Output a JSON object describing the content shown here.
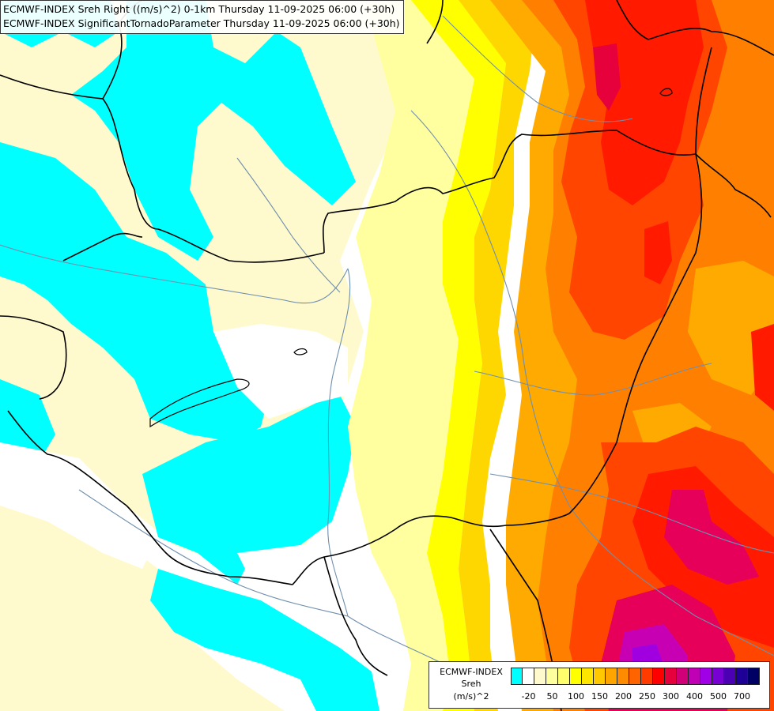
{
  "titles": {
    "line1": "ECMWF-INDEX Sreh Right ((m/s)^2) 0-1km Thursday 11-09-2025 06:00 (+30h)",
    "line2": "ECMWF-INDEX SignificantTornadoParameter Thursday 11-09-2025 06:00 (+30h)"
  },
  "legend": {
    "source": "ECMWF-INDEX",
    "variable": "Sreh",
    "unit": "(m/s)^2",
    "colors": [
      "#00ffff",
      "#ffffff",
      "#fffacd",
      "#ffffa0",
      "#ffff6e",
      "#ffff00",
      "#ffe600",
      "#ffc800",
      "#ffa500",
      "#ff8c00",
      "#ff6400",
      "#ff3c00",
      "#ff0000",
      "#e6003c",
      "#d20078",
      "#c000b4",
      "#a000e6",
      "#7800d2",
      "#4b00b4",
      "#1e0096",
      "#000064"
    ],
    "ticks": [
      "-20",
      "50",
      "100",
      "150",
      "200",
      "250",
      "300",
      "400",
      "500",
      "700"
    ]
  },
  "map_colors": {
    "neg": "#00ffff",
    "pale": "#fffacd",
    "pale2": "#ffffa0",
    "yellow": "#ffff00",
    "gold": "#ffd700",
    "orange": "#ffaa00",
    "darkorange": "#ff7f00",
    "red": "#ff4000",
    "deepred": "#ff0000",
    "crimson": "#e0005a",
    "magenta": "#c800b4",
    "purple": "#a000e0",
    "border": "#000000",
    "river": "#6f8fae"
  }
}
